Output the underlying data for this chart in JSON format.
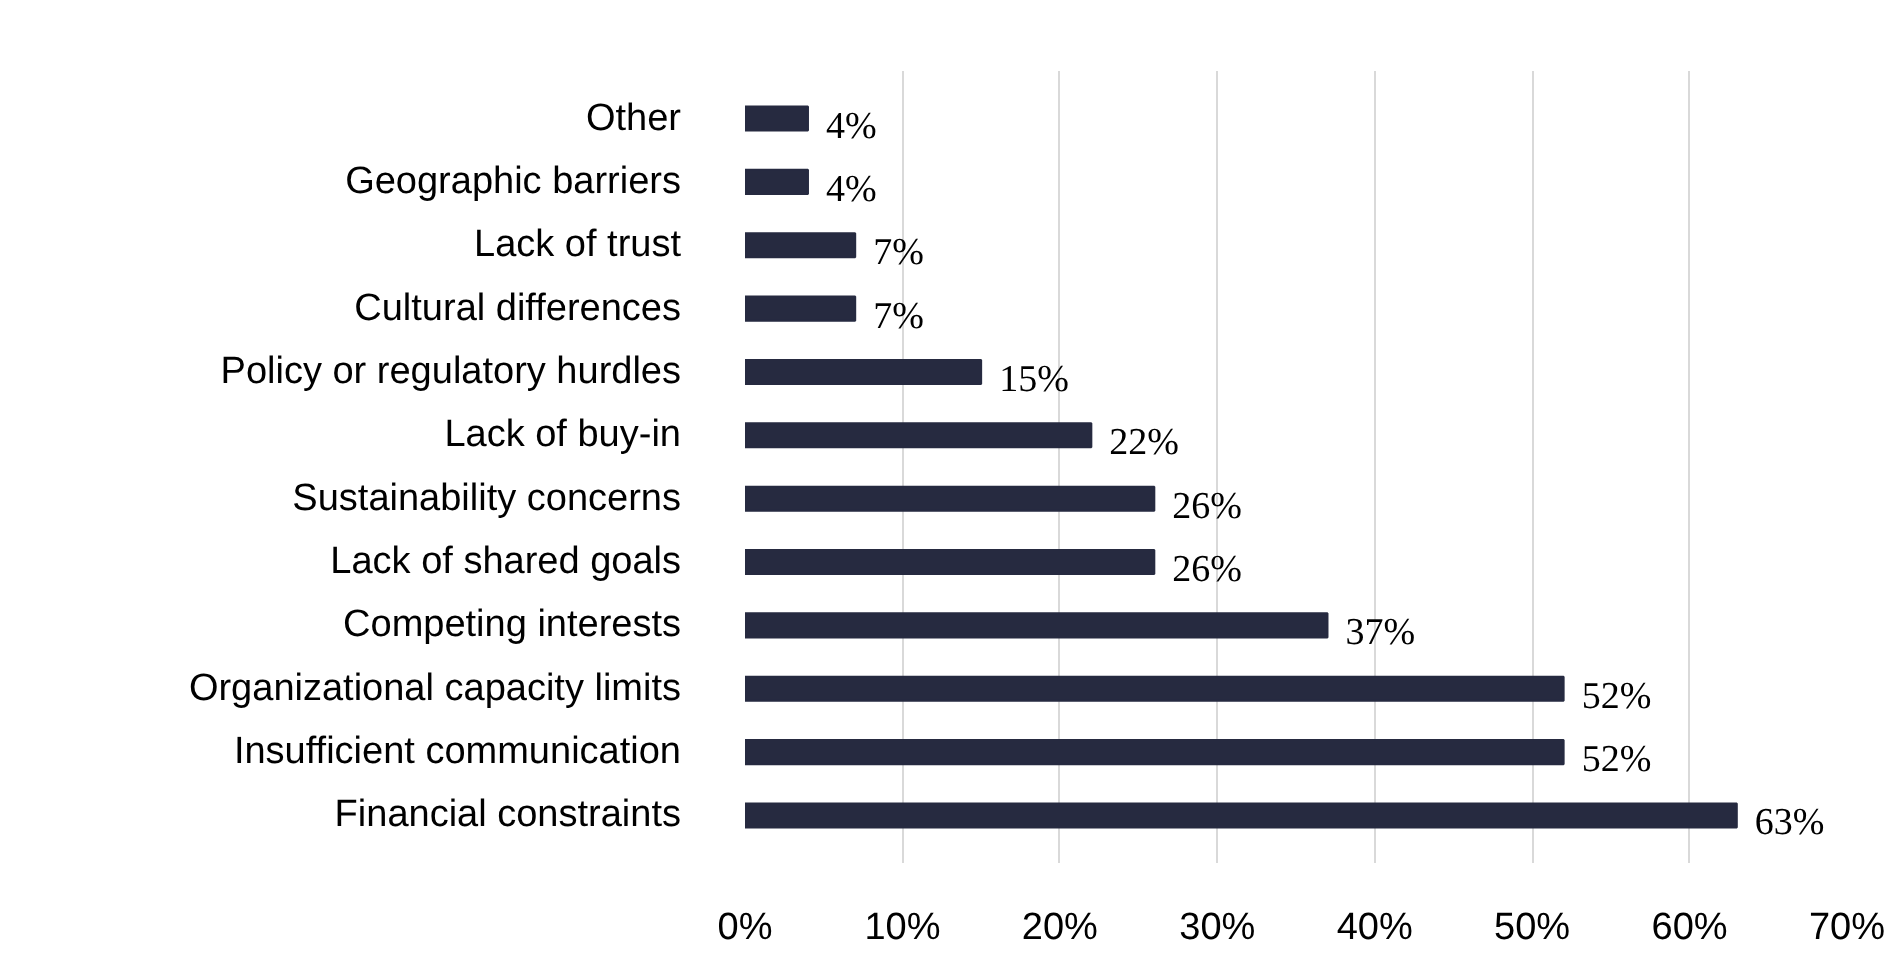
{
  "chart_data": {
    "type": "bar",
    "orientation": "horizontal",
    "categories": [
      "Other",
      "Geographic barriers",
      "Lack of trust",
      "Cultural differences",
      "Policy or regulatory hurdles",
      "Lack of buy-in",
      "Sustainability concerns",
      "Lack of shared goals",
      "Competing interests",
      "Organizational capacity limits",
      "Insufficient communication",
      "Financial constraints"
    ],
    "values": [
      4,
      4,
      7,
      7,
      15,
      22,
      26,
      26,
      37,
      52,
      52,
      63
    ],
    "value_labels": [
      "4%",
      "4%",
      "7%",
      "7%",
      "15%",
      "22%",
      "26%",
      "26%",
      "37%",
      "52%",
      "52%",
      "63%"
    ],
    "color": "#262a40",
    "xlim": [
      0,
      70
    ],
    "xticks": [
      {
        "value": 0,
        "label": "0%"
      },
      {
        "value": 10,
        "label": "10%"
      },
      {
        "value": 20,
        "label": "20%"
      },
      {
        "value": 30,
        "label": "30%"
      },
      {
        "value": 40,
        "label": "40%"
      },
      {
        "value": 50,
        "label": "50%"
      },
      {
        "value": 60,
        "label": "60%"
      },
      {
        "value": 70,
        "label": "70%"
      }
    ],
    "grid": "x"
  }
}
